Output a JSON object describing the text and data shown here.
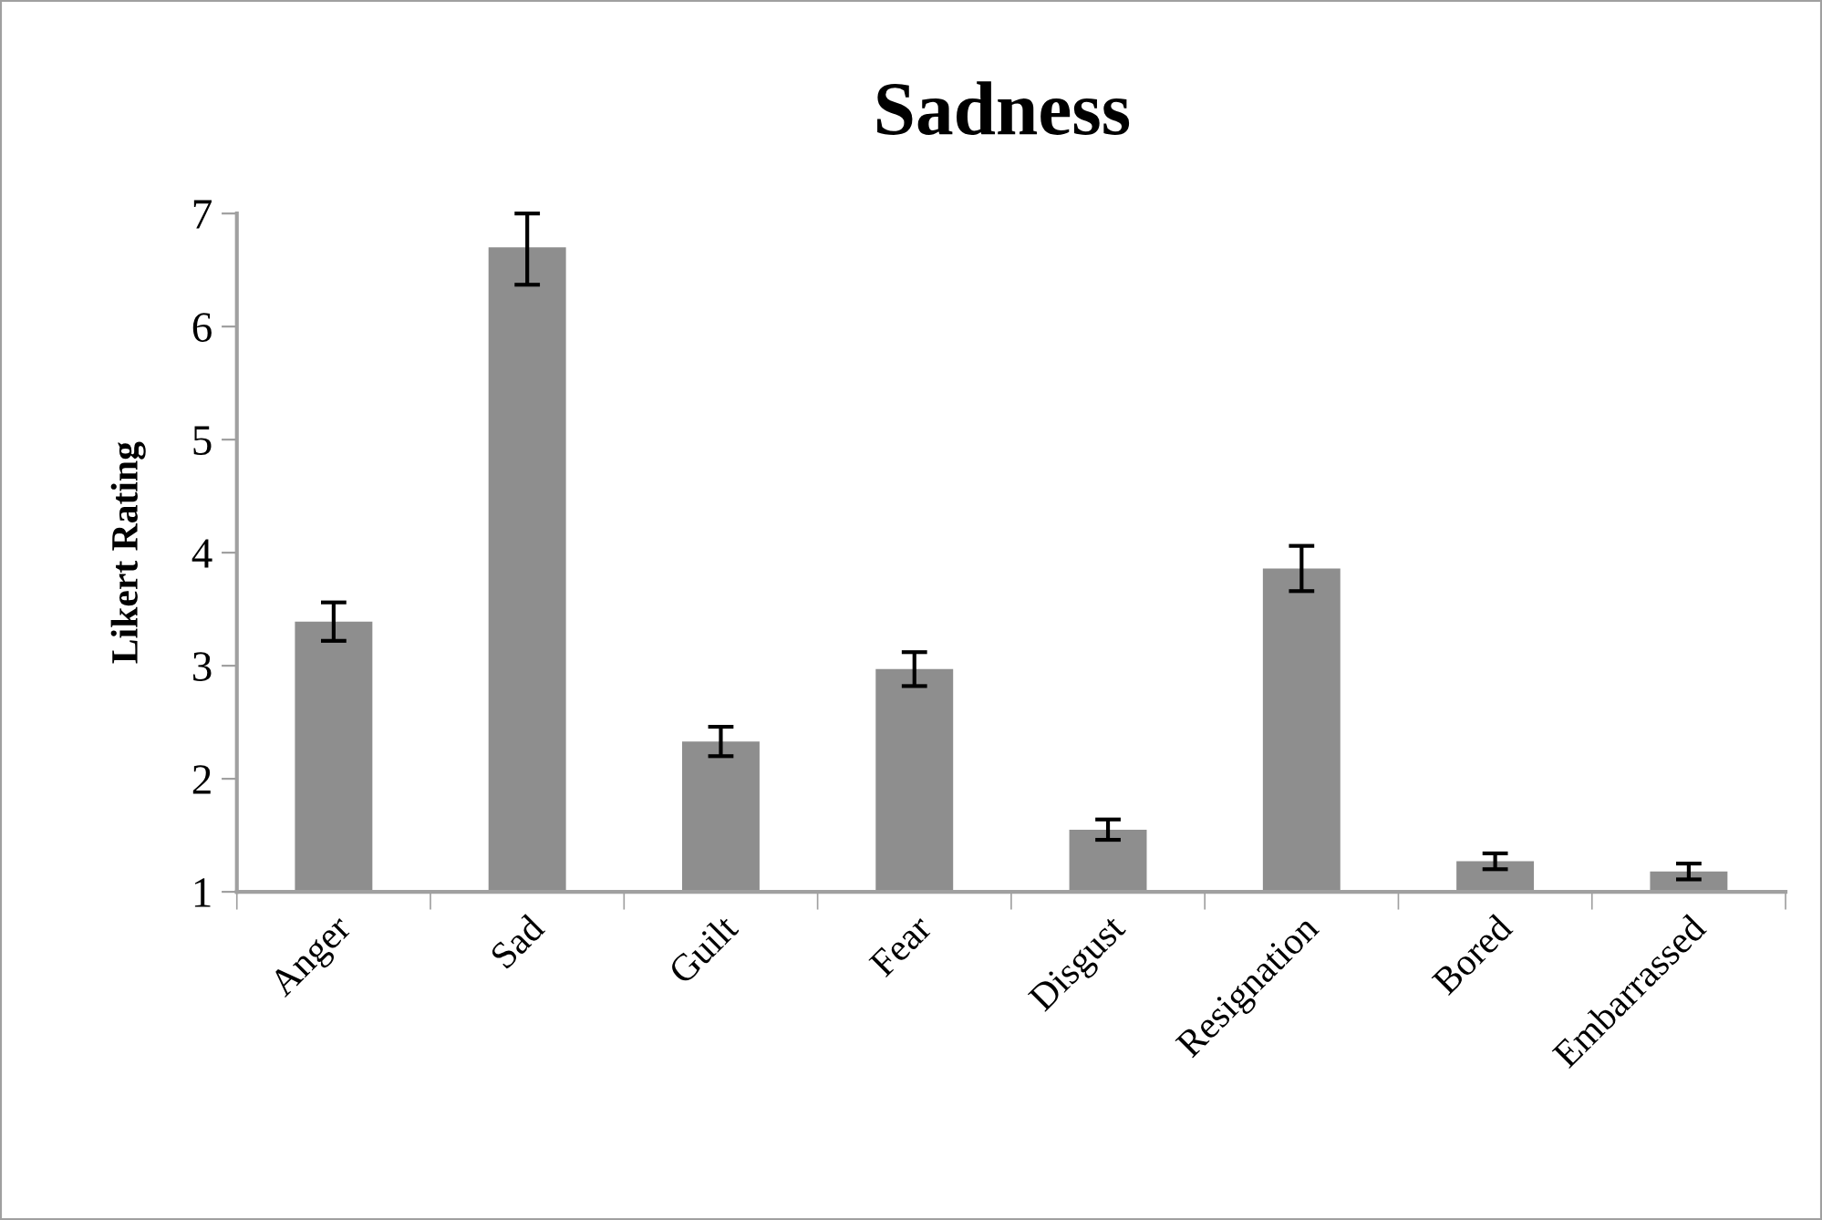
{
  "chart_data": {
    "type": "bar",
    "title": "Sadness",
    "ylabel": "Likert Rating",
    "categories": [
      "Anger",
      "Sad",
      "Guilt",
      "Fear",
      "Disgust",
      "Resignation",
      "Bored",
      "Embarrassed"
    ],
    "values": [
      3.39,
      6.7,
      2.33,
      2.97,
      1.55,
      3.86,
      1.27,
      1.18
    ],
    "errors": [
      0.17,
      [
        6.37,
        7
      ],
      0.13,
      0.15,
      0.09,
      0.2,
      0.07,
      0.07
    ],
    "color": "#8e8e8e",
    "ylim": [
      1,
      7
    ],
    "yticks": [
      1,
      2,
      3,
      4,
      5,
      6,
      7
    ],
    "grid": false,
    "legend": false
  }
}
